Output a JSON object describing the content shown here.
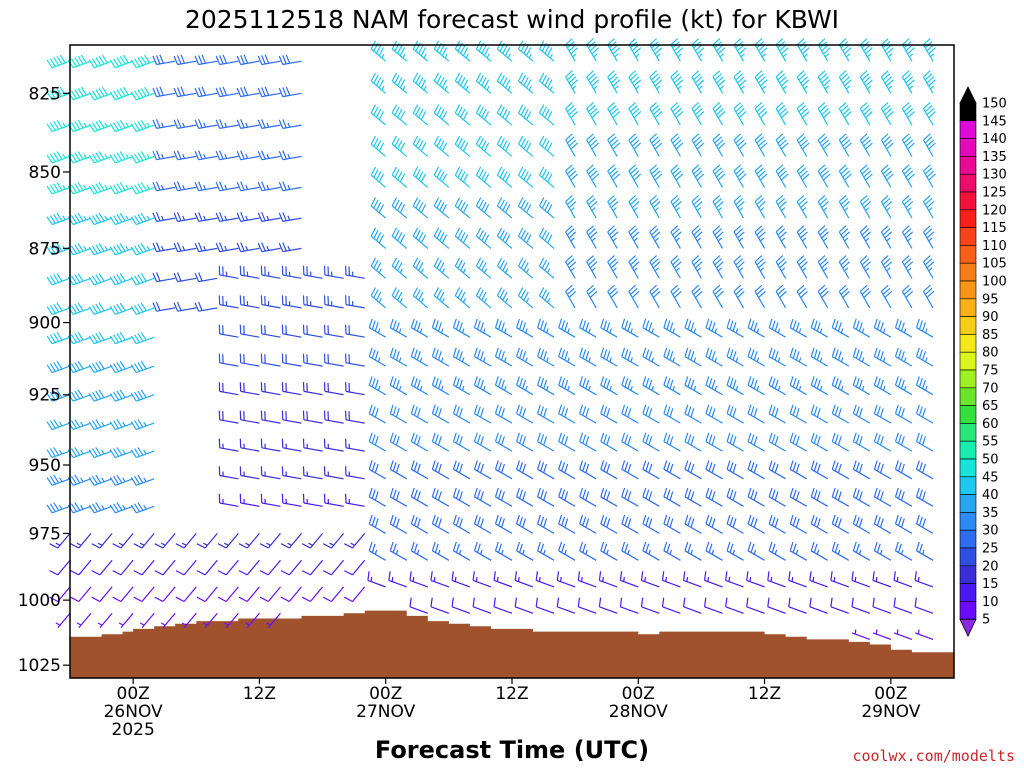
{
  "chart_data": {
    "type": "wind-barb time-height profile",
    "title": "2025112518 NAM forecast wind profile (kt) for KBWI",
    "xlabel": "Forecast Time (UTC)",
    "ylabel": "",
    "y_range_hPa": [
      810,
      1030
    ],
    "y_scale": "log",
    "y_ticks": [
      825,
      850,
      875,
      900,
      925,
      950,
      975,
      1000,
      1025
    ],
    "x_range_hours": [
      -6,
      78
    ],
    "x_ticks": [
      {
        "hour": 0,
        "lines": [
          "00Z",
          "26NOV",
          "2025"
        ]
      },
      {
        "hour": 12,
        "lines": [
          "12Z"
        ]
      },
      {
        "hour": 24,
        "lines": [
          "00Z",
          "27NOV"
        ]
      },
      {
        "hour": 36,
        "lines": [
          "12Z"
        ]
      },
      {
        "hour": 48,
        "lines": [
          "00Z",
          "28NOV"
        ]
      },
      {
        "hour": 60,
        "lines": [
          "12Z"
        ]
      },
      {
        "hour": 72,
        "lines": [
          "00Z",
          "29NOV"
        ]
      }
    ],
    "pressure_levels_hPa": [
      815,
      825,
      835,
      845,
      855,
      865,
      875,
      885,
      895,
      905,
      915,
      925,
      935,
      945,
      955,
      965,
      975,
      985,
      995,
      1005,
      1015
    ],
    "forecast_hours": [
      -6,
      -5,
      -4,
      -3,
      -2,
      -1,
      0,
      1,
      2,
      3,
      4,
      5,
      6,
      7,
      8,
      9,
      10,
      11,
      12,
      13,
      14,
      15,
      16,
      17,
      18,
      19,
      20,
      21,
      22,
      23,
      24,
      25,
      26,
      27,
      28,
      29,
      30,
      31,
      32,
      33,
      34,
      35,
      36,
      37,
      38,
      39,
      40,
      41,
      42,
      43,
      44,
      45,
      46,
      47,
      48,
      49,
      50,
      51,
      52,
      53,
      54,
      55,
      56,
      57,
      58,
      59,
      60,
      61,
      62,
      63,
      64,
      65,
      66,
      67,
      68,
      69,
      70,
      71,
      72,
      73,
      74,
      75,
      76,
      77
    ],
    "surface_pressure": {
      "hours": [
        -6,
        -3,
        -1,
        0,
        2,
        4,
        6,
        8,
        10,
        12,
        14,
        16,
        18,
        20,
        22,
        24,
        26,
        28,
        30,
        32,
        34,
        36,
        38,
        40,
        42,
        44,
        46,
        48,
        50,
        52,
        54,
        56,
        58,
        60,
        62,
        64,
        66,
        68,
        70,
        72,
        74,
        76,
        78
      ],
      "values_hPa": [
        1014,
        1013,
        1012,
        1011,
        1010,
        1009,
        1008,
        1008,
        1007,
        1007,
        1007,
        1006,
        1006,
        1005,
        1004,
        1004,
        1006,
        1008,
        1009,
        1010,
        1011,
        1011,
        1012,
        1012,
        1012,
        1012,
        1012,
        1013,
        1012,
        1012,
        1012,
        1012,
        1012,
        1013,
        1014,
        1015,
        1015,
        1016,
        1017,
        1019,
        1020,
        1020,
        1021
      ]
    },
    "wind_fields": [
      {
        "hours": [
          -6,
          3
        ],
        "pressure_hPa": [
          810,
          1000
        ],
        "direction_deg": 250,
        "speed_kt": [
          30,
          50
        ],
        "note": "upper left, strongest near 830-860 hPa"
      },
      {
        "hours": [
          3,
          17
        ],
        "pressure_hPa": [
          810,
          900
        ],
        "direction_deg": 260,
        "speed_kt": [
          20,
          30
        ]
      },
      {
        "hours": [
          10,
          24
        ],
        "pressure_hPa": [
          880,
          1000
        ],
        "direction_deg": 280,
        "speed_kt": [
          10,
          25
        ]
      },
      {
        "hours": [
          -6,
          24
        ],
        "pressure_hPa": [
          975,
          1012
        ],
        "direction_deg": 220,
        "speed_kt": [
          5,
          15
        ]
      },
      {
        "hours": [
          24,
          42
        ],
        "pressure_hPa": [
          810,
          900
        ],
        "direction_deg": 310,
        "speed_kt": [
          35,
          45
        ]
      },
      {
        "hours": [
          24,
          78
        ],
        "pressure_hPa": [
          900,
          1000
        ],
        "direction_deg": 300,
        "speed_kt": [
          25,
          35
        ]
      },
      {
        "hours": [
          42,
          78
        ],
        "pressure_hPa": [
          810,
          900
        ],
        "direction_deg": 330,
        "speed_kt": [
          30,
          45
        ]
      },
      {
        "hours": [
          24,
          78
        ],
        "pressure_hPa": [
          990,
          1020
        ],
        "direction_deg": 290,
        "speed_kt": [
          5,
          15
        ]
      }
    ],
    "colorbar": {
      "levels": [
        5,
        10,
        15,
        20,
        25,
        30,
        35,
        40,
        45,
        50,
        55,
        60,
        65,
        70,
        75,
        80,
        85,
        90,
        95,
        100,
        105,
        110,
        115,
        120,
        125,
        130,
        135,
        140,
        145,
        150
      ],
      "colors": [
        "#8a2be2",
        "#6a0dff",
        "#4b18f0",
        "#3a2fd6",
        "#2f4fe0",
        "#2e6cf0",
        "#2b8af4",
        "#27a6f2",
        "#1fc6ee",
        "#18e3d8",
        "#18ecb0",
        "#2ae67a",
        "#36e03a",
        "#6ae32a",
        "#9ff023",
        "#d8f51c",
        "#f2e81a",
        "#f7cc18",
        "#f8b018",
        "#f89418",
        "#f87c18",
        "#f86018",
        "#f84418",
        "#f82018",
        "#f0103a",
        "#ec0c6a",
        "#e80a94",
        "#e40ab8",
        "#e00ad8",
        "#000000"
      ]
    },
    "terrain_color": "#a0522d"
  },
  "credit": "coolwx.com/modelts"
}
